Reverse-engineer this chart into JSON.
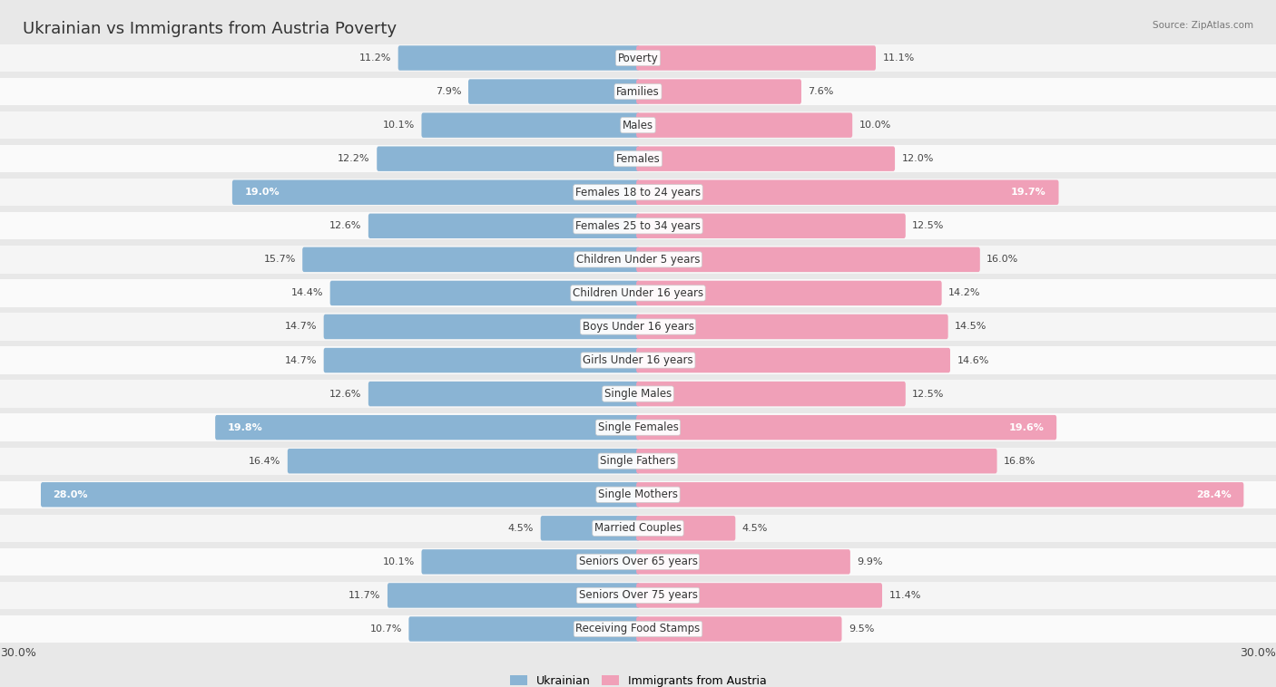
{
  "title": "Ukrainian vs Immigrants from Austria Poverty",
  "source": "Source: ZipAtlas.com",
  "categories": [
    "Poverty",
    "Families",
    "Males",
    "Females",
    "Females 18 to 24 years",
    "Females 25 to 34 years",
    "Children Under 5 years",
    "Children Under 16 years",
    "Boys Under 16 years",
    "Girls Under 16 years",
    "Single Males",
    "Single Females",
    "Single Fathers",
    "Single Mothers",
    "Married Couples",
    "Seniors Over 65 years",
    "Seniors Over 75 years",
    "Receiving Food Stamps"
  ],
  "left_values": [
    11.2,
    7.9,
    10.1,
    12.2,
    19.0,
    12.6,
    15.7,
    14.4,
    14.7,
    14.7,
    12.6,
    19.8,
    16.4,
    28.0,
    4.5,
    10.1,
    11.7,
    10.7
  ],
  "right_values": [
    11.1,
    7.6,
    10.0,
    12.0,
    19.7,
    12.5,
    16.0,
    14.2,
    14.5,
    14.6,
    12.5,
    19.6,
    16.8,
    28.4,
    4.5,
    9.9,
    11.4,
    9.5
  ],
  "left_color": "#8ab4d4",
  "right_color": "#f0a0b8",
  "left_label": "Ukrainian",
  "right_label": "Immigrants from Austria",
  "bg_color": "#e8e8e8",
  "row_bg_even": "#f5f5f5",
  "row_bg_odd": "#fafafa",
  "xlim": 30.0,
  "title_fontsize": 13,
  "label_fontsize": 8.5,
  "value_fontsize": 8,
  "axis_label_fontsize": 9,
  "large_threshold": 18.0
}
